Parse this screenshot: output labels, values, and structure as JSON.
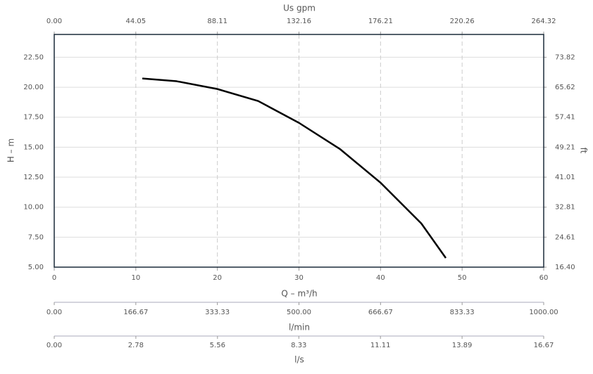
{
  "chart_data": {
    "type": "line",
    "x_label": "Q – m³/h",
    "y_label": "H – m",
    "y2_label": "ft",
    "top_label": "Us gpm",
    "lmin_label": "l/min",
    "ls_label": "l/s",
    "x": [
      10.8,
      15,
      20,
      25,
      30,
      35,
      40,
      45,
      48
    ],
    "series": [
      {
        "color": "#000000",
        "values": [
          20.73,
          20.5,
          19.85,
          18.85,
          17.03,
          14.86,
          12.04,
          8.64,
          5.76
        ]
      }
    ],
    "xlim": [
      0,
      60
    ],
    "xticks": [
      0,
      10,
      20,
      30,
      40,
      50,
      60
    ],
    "ylim": [
      5,
      24.4
    ],
    "yticks": [
      {
        "value": 5,
        "label": "5.00"
      },
      {
        "value": 7.5,
        "label": "7.50"
      },
      {
        "value": 10,
        "label": "10.00"
      },
      {
        "value": 12.5,
        "label": "12.50"
      },
      {
        "value": 15,
        "label": "15.00"
      },
      {
        "value": 17.5,
        "label": "17.50"
      },
      {
        "value": 20,
        "label": "20.00"
      },
      {
        "value": 22.5,
        "label": "22.50"
      }
    ],
    "y2lim": [
      16.4,
      80.05
    ],
    "y2ticks": [
      {
        "value": 16.4,
        "label": "16.40"
      },
      24.61,
      32.81,
      41.01,
      49.21,
      57.41,
      65.62,
      73.82
    ],
    "toplim": [
      0,
      264.32
    ],
    "topticks": [
      {
        "value": 0,
        "label": "0.00"
      },
      44.05,
      88.11,
      132.16,
      176.21,
      220.26,
      264.32
    ],
    "lminlim": [
      0,
      1000
    ],
    "lminticks": [
      {
        "value": 0,
        "label": "0.00"
      },
      166.67,
      333.33,
      {
        "value": 500,
        "label": "500.00"
      },
      666.67,
      833.33,
      {
        "value": 1000,
        "label": "1000.00"
      }
    ],
    "lslim": [
      0,
      16.67
    ],
    "lsticks": [
      {
        "value": 0,
        "label": "0.00"
      },
      2.78,
      5.56,
      8.33,
      11.11,
      13.89,
      16.67
    ],
    "grid": true
  }
}
